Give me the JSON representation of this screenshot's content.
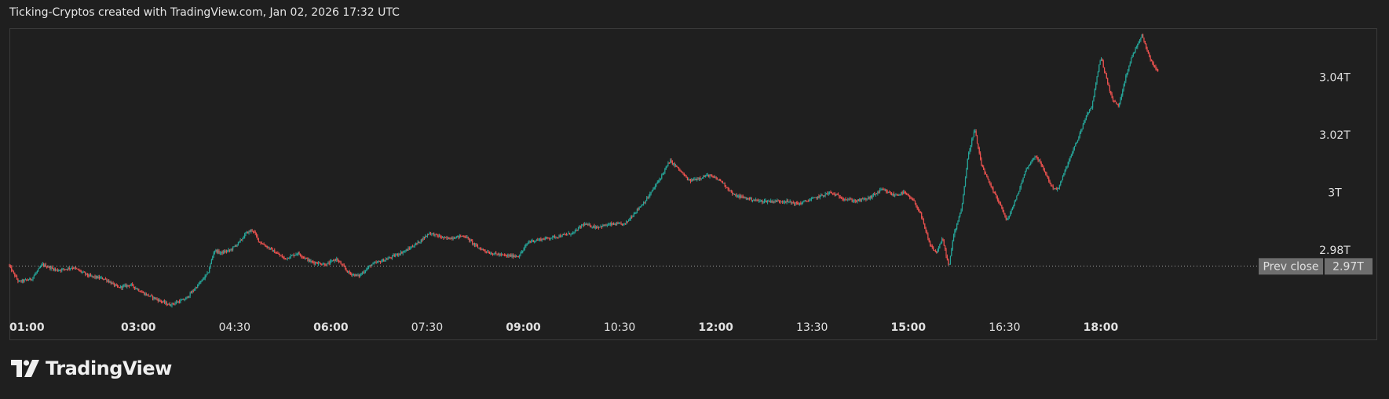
{
  "header": {
    "title": "Ticking-Cryptos created with TradingView.com, Jan 02, 2026 17:32 UTC"
  },
  "logo": {
    "text": "TradingView",
    "icon": "tradingview-logo-icon"
  },
  "colors": {
    "background": "#1f1f1f",
    "up": "#26a69a",
    "down": "#ef5350",
    "prev_close_line": "#9e9e9e",
    "label_bg": "#6e6e6e"
  },
  "chart_data": {
    "type": "candlestick",
    "title": "",
    "xlabel": "",
    "ylabel": "",
    "x_ticks": [
      {
        "label": "01:00",
        "hour": 1.0,
        "bold": true
      },
      {
        "label": "03:00",
        "hour": 3.0,
        "bold": true
      },
      {
        "label": "04:30",
        "hour": 4.5,
        "bold": false
      },
      {
        "label": "06:00",
        "hour": 6.0,
        "bold": true
      },
      {
        "label": "07:30",
        "hour": 7.5,
        "bold": false
      },
      {
        "label": "09:00",
        "hour": 9.0,
        "bold": true
      },
      {
        "label": "10:30",
        "hour": 10.5,
        "bold": false
      },
      {
        "label": "12:00",
        "hour": 12.0,
        "bold": true
      },
      {
        "label": "13:30",
        "hour": 13.5,
        "bold": false
      },
      {
        "label": "15:00",
        "hour": 15.0,
        "bold": true
      },
      {
        "label": "16:30",
        "hour": 16.5,
        "bold": false
      },
      {
        "label": "18:00",
        "hour": 18.0,
        "bold": true
      }
    ],
    "y_ticks": [
      {
        "label": "3.04T",
        "value": 3.04
      },
      {
        "label": "3.02T",
        "value": 3.02
      },
      {
        "label": "3T",
        "value": 3.0
      },
      {
        "label": "2.98T",
        "value": 2.98
      }
    ],
    "y_unit": "T",
    "ylim": [
      2.958,
      3.057
    ],
    "xlim": [
      0.99,
      19.2
    ],
    "prev_close": {
      "label": "Prev close",
      "value_label": "2.97T",
      "value": 2.9745
    },
    "price_path": [
      [
        0.99,
        2.975
      ],
      [
        1.15,
        2.969
      ],
      [
        1.35,
        2.97
      ],
      [
        1.52,
        2.975
      ],
      [
        1.75,
        2.973
      ],
      [
        2.0,
        2.974
      ],
      [
        2.25,
        2.971
      ],
      [
        2.5,
        2.97
      ],
      [
        2.7,
        2.967
      ],
      [
        2.9,
        2.968
      ],
      [
        3.1,
        2.965
      ],
      [
        3.3,
        2.963
      ],
      [
        3.5,
        2.961
      ],
      [
        3.75,
        2.963
      ],
      [
        3.95,
        2.968
      ],
      [
        4.1,
        2.972
      ],
      [
        4.2,
        2.98
      ],
      [
        4.3,
        2.979
      ],
      [
        4.45,
        2.98
      ],
      [
        4.6,
        2.983
      ],
      [
        4.7,
        2.986
      ],
      [
        4.8,
        2.987
      ],
      [
        4.9,
        2.983
      ],
      [
        5.1,
        2.98
      ],
      [
        5.3,
        2.977
      ],
      [
        5.5,
        2.979
      ],
      [
        5.7,
        2.976
      ],
      [
        5.95,
        2.975
      ],
      [
        6.1,
        2.977
      ],
      [
        6.3,
        2.972
      ],
      [
        6.45,
        2.971
      ],
      [
        6.65,
        2.975
      ],
      [
        6.9,
        2.977
      ],
      [
        7.2,
        2.98
      ],
      [
        7.4,
        2.983
      ],
      [
        7.55,
        2.986
      ],
      [
        7.8,
        2.984
      ],
      [
        8.1,
        2.985
      ],
      [
        8.3,
        2.981
      ],
      [
        8.5,
        2.979
      ],
      [
        8.75,
        2.978
      ],
      [
        8.95,
        2.978
      ],
      [
        9.1,
        2.983
      ],
      [
        9.35,
        2.984
      ],
      [
        9.6,
        2.985
      ],
      [
        9.8,
        2.986
      ],
      [
        9.95,
        2.989
      ],
      [
        10.15,
        2.988
      ],
      [
        10.4,
        2.989
      ],
      [
        10.6,
        2.989
      ],
      [
        10.75,
        2.993
      ],
      [
        10.95,
        2.998
      ],
      [
        11.15,
        3.005
      ],
      [
        11.3,
        3.011
      ],
      [
        11.4,
        3.009
      ],
      [
        11.6,
        3.004
      ],
      [
        11.9,
        3.006
      ],
      [
        12.1,
        3.004
      ],
      [
        12.3,
        2.999
      ],
      [
        12.5,
        2.998
      ],
      [
        12.7,
        2.997
      ],
      [
        12.9,
        2.997
      ],
      [
        13.1,
        2.997
      ],
      [
        13.3,
        2.996
      ],
      [
        13.55,
        2.998
      ],
      [
        13.8,
        3.0
      ],
      [
        14.0,
        2.998
      ],
      [
        14.2,
        2.997
      ],
      [
        14.4,
        2.998
      ],
      [
        14.6,
        3.001
      ],
      [
        14.8,
        2.999
      ],
      [
        14.95,
        3.0
      ],
      [
        15.1,
        2.997
      ],
      [
        15.2,
        2.993
      ],
      [
        15.35,
        2.982
      ],
      [
        15.45,
        2.979
      ],
      [
        15.55,
        2.984
      ],
      [
        15.65,
        2.974
      ],
      [
        15.72,
        2.985
      ],
      [
        15.85,
        2.995
      ],
      [
        15.95,
        3.013
      ],
      [
        16.05,
        3.022
      ],
      [
        16.15,
        3.01
      ],
      [
        16.3,
        3.002
      ],
      [
        16.45,
        2.996
      ],
      [
        16.55,
        2.99
      ],
      [
        16.7,
        2.998
      ],
      [
        16.85,
        3.008
      ],
      [
        17.0,
        3.013
      ],
      [
        17.15,
        3.007
      ],
      [
        17.25,
        3.002
      ],
      [
        17.35,
        3.001
      ],
      [
        17.5,
        3.01
      ],
      [
        17.65,
        3.018
      ],
      [
        17.78,
        3.026
      ],
      [
        17.88,
        3.03
      ],
      [
        17.97,
        3.042
      ],
      [
        18.02,
        3.047
      ],
      [
        18.1,
        3.04
      ],
      [
        18.2,
        3.032
      ],
      [
        18.3,
        3.03
      ],
      [
        18.4,
        3.04
      ],
      [
        18.5,
        3.047
      ],
      [
        18.58,
        3.051
      ],
      [
        18.66,
        3.055
      ],
      [
        18.74,
        3.049
      ],
      [
        18.82,
        3.045
      ],
      [
        18.9,
        3.042
      ]
    ]
  }
}
